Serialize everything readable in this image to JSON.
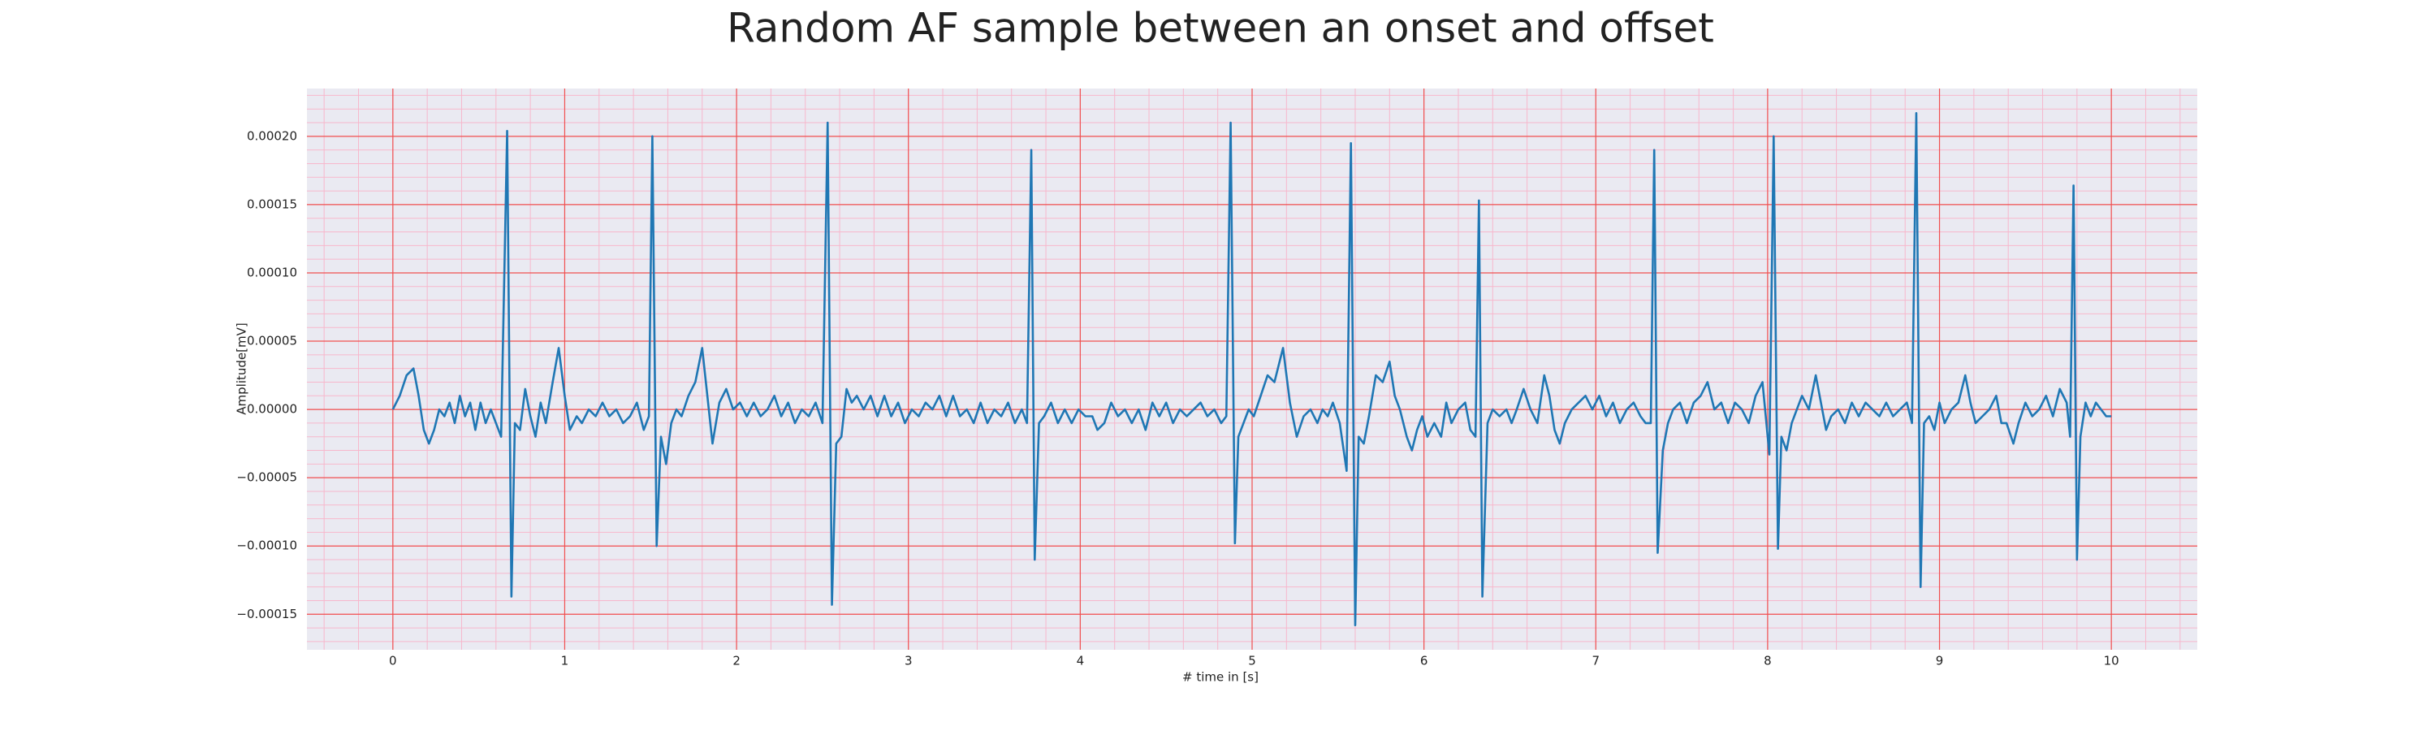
{
  "chart_data": {
    "type": "line",
    "title": "Random AF sample between an onset and offset",
    "x_label": "# time in [s]",
    "y_label": "Amplitude[mV]",
    "color": "#1f77b4",
    "grid": true,
    "minor_grid": true,
    "xlim": [
      -0.5,
      10.5
    ],
    "ylim": [
      -0.000176,
      0.000235
    ],
    "xticks": [
      0,
      1,
      2,
      3,
      4,
      5,
      6,
      7,
      8,
      9,
      10
    ],
    "yticks": [
      {
        "value": -0.00015,
        "label": "−0.00015"
      },
      {
        "value": -0.0001,
        "label": "−0.00010"
      },
      {
        "value": -5e-05,
        "label": "−0.00005"
      },
      {
        "value": 0,
        "label": "0.00000"
      },
      {
        "value": 5e-05,
        "label": "0.00005"
      },
      {
        "value": 0.0001,
        "label": "0.00010"
      },
      {
        "value": 0.00015,
        "label": "0.00015"
      },
      {
        "value": 0.0002,
        "label": "0.00020"
      }
    ],
    "x": [
      0,
      0.04,
      0.08,
      0.12,
      0.15,
      0.18,
      0.21,
      0.24,
      0.27,
      0.3,
      0.33,
      0.36,
      0.39,
      0.42,
      0.45,
      0.48,
      0.51,
      0.54,
      0.57,
      0.6,
      0.63,
      0.665,
      0.69,
      0.71,
      0.74,
      0.77,
      0.8,
      0.83,
      0.86,
      0.89,
      0.93,
      0.965,
      1.0,
      1.03,
      1.07,
      1.1,
      1.14,
      1.18,
      1.22,
      1.26,
      1.3,
      1.34,
      1.38,
      1.42,
      1.46,
      1.49,
      1.51,
      1.535,
      1.56,
      1.59,
      1.62,
      1.65,
      1.68,
      1.72,
      1.76,
      1.8,
      1.83,
      1.86,
      1.9,
      1.94,
      1.98,
      2.02,
      2.06,
      2.1,
      2.14,
      2.18,
      2.22,
      2.26,
      2.3,
      2.34,
      2.38,
      2.42,
      2.46,
      2.5,
      2.53,
      2.555,
      2.58,
      2.61,
      2.64,
      2.67,
      2.7,
      2.74,
      2.78,
      2.82,
      2.86,
      2.9,
      2.94,
      2.98,
      3.02,
      3.06,
      3.1,
      3.14,
      3.18,
      3.22,
      3.26,
      3.3,
      3.34,
      3.38,
      3.42,
      3.46,
      3.5,
      3.54,
      3.58,
      3.62,
      3.66,
      3.69,
      3.715,
      3.735,
      3.76,
      3.79,
      3.83,
      3.87,
      3.91,
      3.95,
      3.99,
      4.03,
      4.07,
      4.1,
      4.14,
      4.18,
      4.22,
      4.26,
      4.3,
      4.34,
      4.38,
      4.42,
      4.46,
      4.5,
      4.54,
      4.58,
      4.62,
      4.66,
      4.7,
      4.74,
      4.78,
      4.82,
      4.85,
      4.875,
      4.9,
      4.92,
      4.95,
      4.98,
      5.01,
      5.05,
      5.09,
      5.13,
      5.18,
      5.22,
      5.26,
      5.3,
      5.34,
      5.38,
      5.41,
      5.44,
      5.47,
      5.51,
      5.55,
      5.575,
      5.6,
      5.62,
      5.65,
      5.68,
      5.72,
      5.76,
      5.8,
      5.83,
      5.86,
      5.9,
      5.93,
      5.96,
      5.99,
      6.02,
      6.06,
      6.1,
      6.13,
      6.16,
      6.2,
      6.24,
      6.27,
      6.3,
      6.32,
      6.34,
      6.37,
      6.4,
      6.44,
      6.48,
      6.51,
      6.54,
      6.58,
      6.62,
      6.66,
      6.7,
      6.73,
      6.76,
      6.79,
      6.82,
      6.86,
      6.9,
      6.94,
      6.98,
      7.02,
      7.06,
      7.1,
      7.14,
      7.18,
      7.22,
      7.26,
      7.29,
      7.32,
      7.34,
      7.36,
      7.39,
      7.42,
      7.45,
      7.49,
      7.53,
      7.57,
      7.61,
      7.65,
      7.69,
      7.73,
      7.77,
      7.81,
      7.85,
      7.89,
      7.93,
      7.97,
      8.01,
      8.035,
      8.06,
      8.08,
      8.11,
      8.14,
      8.17,
      8.2,
      8.24,
      8.28,
      8.31,
      8.34,
      8.37,
      8.41,
      8.45,
      8.49,
      8.53,
      8.57,
      8.61,
      8.65,
      8.69,
      8.73,
      8.77,
      8.81,
      8.84,
      8.865,
      8.89,
      8.91,
      8.94,
      8.97,
      9.0,
      9.03,
      9.07,
      9.11,
      9.15,
      9.18,
      9.21,
      9.25,
      9.29,
      9.33,
      9.36,
      9.39,
      9.43,
      9.46,
      9.5,
      9.54,
      9.58,
      9.62,
      9.66,
      9.7,
      9.74,
      9.76,
      9.78,
      9.8,
      9.82,
      9.85,
      9.88,
      9.91,
      9.94,
      9.97,
      10.0
    ],
    "values": [
      0,
      1e-05,
      2.5e-05,
      3e-05,
      1e-05,
      -1.5e-05,
      -2.5e-05,
      -1.5e-05,
      0,
      -5e-06,
      5e-06,
      -1e-05,
      1e-05,
      -5e-06,
      5e-06,
      -1.5e-05,
      5e-06,
      -1e-05,
      0,
      -1e-05,
      -2e-05,
      0.000204,
      -0.000137,
      -1e-05,
      -1.5e-05,
      1.5e-05,
      -5e-06,
      -2e-05,
      5e-06,
      -1e-05,
      2e-05,
      4.5e-05,
      1e-05,
      -1.5e-05,
      -5e-06,
      -1e-05,
      0,
      -5e-06,
      5e-06,
      -5e-06,
      0,
      -1e-05,
      -5e-06,
      5e-06,
      -1.5e-05,
      -5e-06,
      0.0002,
      -0.0001,
      -2e-05,
      -4e-05,
      -1e-05,
      0,
      -5e-06,
      1e-05,
      2e-05,
      4.5e-05,
      1e-05,
      -2.5e-05,
      5e-06,
      1.5e-05,
      0,
      5e-06,
      -5e-06,
      5e-06,
      -5e-06,
      0,
      1e-05,
      -5e-06,
      5e-06,
      -1e-05,
      0,
      -5e-06,
      5e-06,
      -1e-05,
      0.00021,
      -0.000143,
      -2.5e-05,
      -2e-05,
      1.5e-05,
      5e-06,
      1e-05,
      0,
      1e-05,
      -5e-06,
      1e-05,
      -5e-06,
      5e-06,
      -1e-05,
      0,
      -5e-06,
      5e-06,
      0,
      1e-05,
      -5e-06,
      1e-05,
      -5e-06,
      0,
      -1e-05,
      5e-06,
      -1e-05,
      0,
      -5e-06,
      5e-06,
      -1e-05,
      0,
      -1e-05,
      0.00019,
      -0.00011,
      -1e-05,
      -5e-06,
      5e-06,
      -1e-05,
      0,
      -1e-05,
      0,
      -5e-06,
      -5e-06,
      -1.5e-05,
      -1e-05,
      5e-06,
      -5e-06,
      0,
      -1e-05,
      0,
      -1.5e-05,
      5e-06,
      -5e-06,
      5e-06,
      -1e-05,
      0,
      -5e-06,
      0,
      5e-06,
      -5e-06,
      0,
      -1e-05,
      -5e-06,
      0.00021,
      -9.8e-05,
      -2e-05,
      -1e-05,
      0,
      -5e-06,
      1e-05,
      2.5e-05,
      2e-05,
      4.5e-05,
      5e-06,
      -2e-05,
      -5e-06,
      0,
      -1e-05,
      0,
      -5e-06,
      5e-06,
      -1e-05,
      -4.5e-05,
      0.000195,
      -0.000158,
      -2e-05,
      -2.5e-05,
      -5e-06,
      2.5e-05,
      2e-05,
      3.5e-05,
      1e-05,
      0,
      -2e-05,
      -3e-05,
      -1.5e-05,
      -5e-06,
      -2e-05,
      -1e-05,
      -2e-05,
      5e-06,
      -1e-05,
      0,
      5e-06,
      -1.5e-05,
      -2e-05,
      0.000153,
      -0.000137,
      -1e-05,
      0,
      -5e-06,
      0,
      -1e-05,
      0,
      1.5e-05,
      0,
      -1e-05,
      2.5e-05,
      1e-05,
      -1.5e-05,
      -2.5e-05,
      -1e-05,
      0,
      5e-06,
      1e-05,
      0,
      1e-05,
      -5e-06,
      5e-06,
      -1e-05,
      0,
      5e-06,
      -5e-06,
      -1e-05,
      -1e-05,
      0.00019,
      -0.000105,
      -3e-05,
      -1e-05,
      0,
      5e-06,
      -1e-05,
      5e-06,
      1e-05,
      2e-05,
      0,
      5e-06,
      -1e-05,
      5e-06,
      0,
      -1e-05,
      1e-05,
      2e-05,
      -3.3e-05,
      0.0002,
      -0.000102,
      -2e-05,
      -3e-05,
      -1e-05,
      0,
      1e-05,
      0,
      2.5e-05,
      5e-06,
      -1.5e-05,
      -5e-06,
      0,
      -1e-05,
      5e-06,
      -5e-06,
      5e-06,
      0,
      -5e-06,
      5e-06,
      -5e-06,
      0,
      5e-06,
      -1e-05,
      0.000217,
      -0.00013,
      -1e-05,
      -5e-06,
      -1.5e-05,
      5e-06,
      -1e-05,
      0,
      5e-06,
      2.5e-05,
      5e-06,
      -1e-05,
      -5e-06,
      0,
      1e-05,
      -1e-05,
      -1e-05,
      -2.5e-05,
      -1e-05,
      5e-06,
      -5e-06,
      0,
      1e-05,
      -5e-06,
      1.5e-05,
      5e-06,
      -2e-05,
      0.000164,
      -0.00011,
      -2e-05,
      5e-06,
      -5e-06,
      5e-06,
      0,
      -5e-06,
      -5e-06
    ]
  }
}
